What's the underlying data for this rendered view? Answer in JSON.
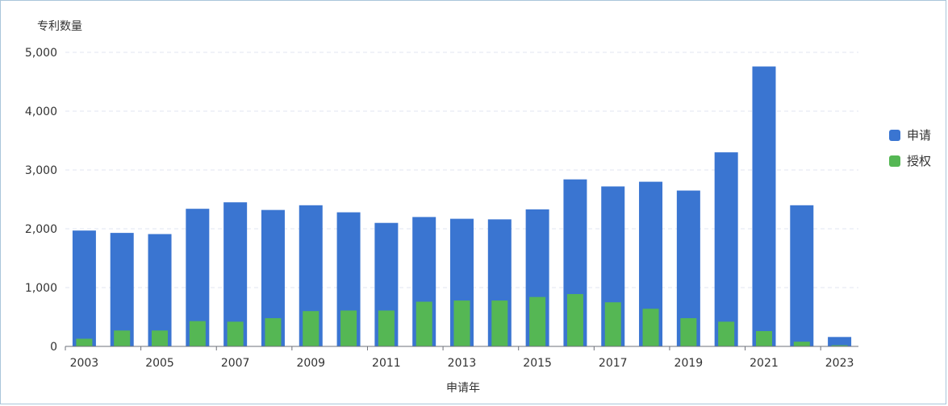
{
  "chart_data": {
    "type": "bar",
    "ylabel": "专利数量",
    "xlabel": "申请年",
    "ylim": [
      0,
      5000
    ],
    "yticks": [
      0,
      1000,
      2000,
      3000,
      4000,
      5000
    ],
    "ytick_labels": [
      "0",
      "1,000",
      "2,000",
      "3,000",
      "4,000",
      "5,000"
    ],
    "categories": [
      2003,
      2004,
      2005,
      2006,
      2007,
      2008,
      2009,
      2010,
      2011,
      2012,
      2013,
      2014,
      2015,
      2016,
      2017,
      2018,
      2019,
      2020,
      2021,
      2022,
      2023
    ],
    "xtick_labels": [
      "2003",
      "2005",
      "2007",
      "2009",
      "2011",
      "2013",
      "2015",
      "2017",
      "2019",
      "2021",
      "2023"
    ],
    "grid": true,
    "legend_position": "right",
    "series": [
      {
        "name": "申请",
        "color": "#3a75d1",
        "values": [
          1970,
          1930,
          1910,
          2340,
          2450,
          2320,
          2400,
          2280,
          2100,
          2200,
          2170,
          2160,
          2330,
          2840,
          2720,
          2800,
          2650,
          3300,
          4760,
          2400,
          160
        ]
      },
      {
        "name": "授权",
        "color": "#55b754",
        "values": [
          130,
          270,
          270,
          430,
          420,
          480,
          600,
          610,
          610,
          760,
          780,
          780,
          840,
          890,
          750,
          640,
          480,
          420,
          260,
          80,
          20
        ]
      }
    ]
  }
}
